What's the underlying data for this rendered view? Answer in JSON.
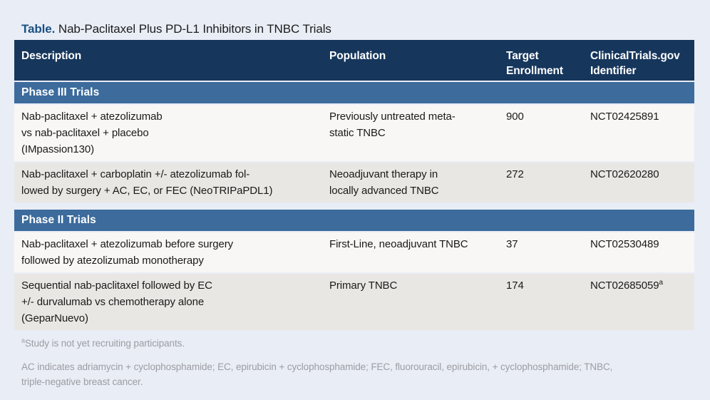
{
  "title": {
    "label": "Table.",
    "text": " Nab-Paclitaxel Plus PD-L1 Inhibitors in TNBC Trials"
  },
  "table": {
    "columns": [
      "Description",
      "Population",
      "Target\nEnrollment",
      "ClinicalTrials.gov\nIdentifier"
    ],
    "sections": [
      {
        "label": "Phase III Trials",
        "rows": [
          {
            "description": "Nab-paclitaxel + atezolizumab\nvs nab-paclitaxel + placebo\n(IMpassion130)",
            "population": "Previously untreated meta-\nstatic TNBC",
            "enrollment": "900",
            "identifier": "NCT02425891",
            "identifier_note": ""
          },
          {
            "description": "Nab-paclitaxel + carboplatin +/- atezolizumab fol-\nlowed by surgery + AC, EC, or FEC (NeoTRIPaPDL1)",
            "population": "Neoadjuvant therapy in\nlocally advanced TNBC",
            "enrollment": "272",
            "identifier": "NCT02620280",
            "identifier_note": ""
          }
        ]
      },
      {
        "label": "Phase II Trials",
        "rows": [
          {
            "description": "Nab-paclitaxel + atezolizumab before surgery\nfollowed by atezolizumab monotherapy",
            "population": "First-Line, neoadjuvant TNBC",
            "enrollment": "37",
            "identifier": "NCT02530489",
            "identifier_note": ""
          },
          {
            "description": "Sequential nab-paclitaxel followed by EC\n+/- durvalumab vs chemotherapy alone\n(GeparNuevo)",
            "population": "Primary TNBC",
            "enrollment": "174",
            "identifier": "NCT02685059",
            "identifier_note": "a"
          }
        ]
      }
    ]
  },
  "footnotes": {
    "note_marker": "a",
    "note_text": "Study is not yet recruiting participants.",
    "abbreviations": "AC indicates adriamycin + cyclophosphamide; EC, epirubicin + cyclophosphamide; FEC, fluorouracil, epirubicin, + cyclophosphamide; TNBC,\ntriple-negative breast cancer."
  },
  "colors": {
    "page_bg": "#e9edf6",
    "header_bg": "#16365c",
    "section_bg": "#3c6b9c",
    "row_light": "#f8f7f5",
    "row_gray": "#e8e7e4",
    "title_accent": "#1a5183",
    "footnote_text": "#9b9da1"
  }
}
